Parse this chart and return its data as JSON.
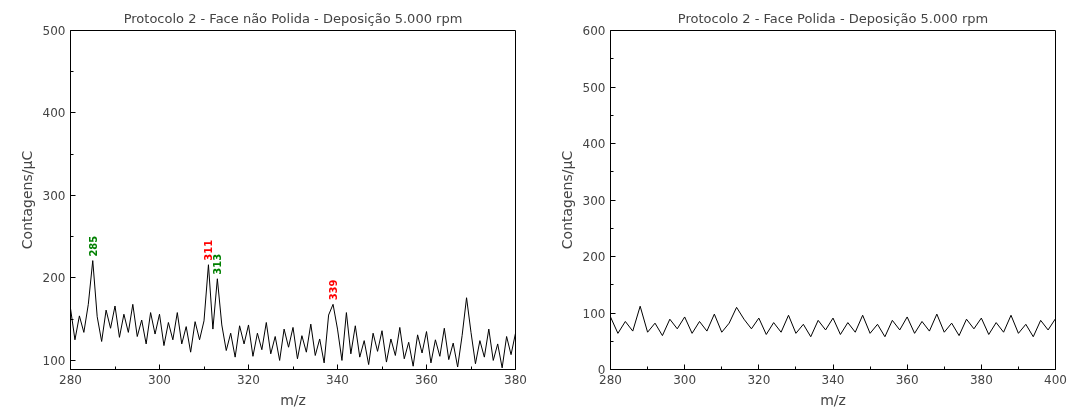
{
  "chart_data": [
    {
      "type": "line",
      "title": "Protocolo 2 - Face não Polida - Deposição 5.000 rpm",
      "xlabel": "m/z",
      "ylabel": "Contagens/μC",
      "xlim": [
        280,
        380
      ],
      "xticks": [
        280,
        300,
        320,
        340,
        360,
        380
      ],
      "ylim": [
        89,
        500
      ],
      "yticks": [
        100,
        200,
        300,
        400,
        500
      ],
      "grid": false,
      "series": [
        {
          "color": "#000000",
          "x": [
            280,
            281,
            282,
            283,
            284,
            285,
            286,
            287,
            288,
            289,
            290,
            291,
            292,
            293,
            294,
            295,
            296,
            297,
            298,
            299,
            300,
            301,
            302,
            303,
            304,
            305,
            306,
            307,
            308,
            309,
            310,
            311,
            312,
            313,
            314,
            315,
            316,
            317,
            318,
            319,
            320,
            321,
            322,
            323,
            324,
            325,
            326,
            327,
            328,
            329,
            330,
            331,
            332,
            333,
            334,
            335,
            336,
            337,
            338,
            339,
            340,
            341,
            342,
            343,
            344,
            345,
            346,
            347,
            348,
            349,
            350,
            351,
            352,
            353,
            354,
            355,
            356,
            357,
            358,
            359,
            360,
            361,
            362,
            363,
            364,
            365,
            366,
            367,
            368,
            369,
            370,
            371,
            372,
            373,
            374,
            375,
            376,
            377,
            378,
            379,
            380
          ],
          "values": [
            163,
            125,
            154,
            134,
            168,
            221,
            153,
            123,
            161,
            139,
            166,
            128,
            156,
            134,
            168,
            129,
            149,
            120,
            158,
            132,
            156,
            118,
            146,
            125,
            158,
            120,
            141,
            110,
            147,
            125,
            148,
            216,
            138,
            199,
            143,
            112,
            133,
            104,
            142,
            120,
            143,
            105,
            133,
            113,
            146,
            108,
            129,
            100,
            138,
            116,
            140,
            102,
            130,
            110,
            144,
            106,
            126,
            97,
            155,
            168,
            138,
            100,
            158,
            108,
            142,
            104,
            124,
            95,
            133,
            111,
            136,
            98,
            126,
            106,
            140,
            102,
            122,
            93,
            131,
            109,
            135,
            97,
            125,
            105,
            139,
            101,
            121,
            92,
            130,
            176,
            134,
            96,
            124,
            104,
            138,
            100,
            120,
            91,
            129,
            107,
            133
          ]
        }
      ],
      "annotations": [
        {
          "text": "285",
          "x": 285,
          "y": 221
        },
        {
          "text": "311",
          "x": 311,
          "y": 216
        },
        {
          "text": "313",
          "x": 313,
          "y": 199
        },
        {
          "text": "339",
          "x": 339,
          "y": 168
        }
      ]
    },
    {
      "type": "line",
      "title": "Protocolo 2 - Face Polida - Deposição 5.000 rpm",
      "xlabel": "m/z",
      "ylabel": "Contagens/μC",
      "xlim": [
        280,
        400
      ],
      "xticks": [
        280,
        300,
        320,
        340,
        360,
        380,
        400
      ],
      "ylim": [
        0,
        600
      ],
      "yticks": [
        0,
        100,
        200,
        300,
        400,
        500,
        600
      ],
      "grid": false,
      "series": [
        {
          "color": "#000000",
          "x": [
            280,
            282,
            284,
            286,
            288,
            290,
            292,
            294,
            296,
            298,
            300,
            302,
            304,
            306,
            308,
            310,
            312,
            314,
            316,
            318,
            320,
            322,
            324,
            326,
            328,
            330,
            332,
            334,
            336,
            338,
            340,
            342,
            344,
            346,
            348,
            350,
            352,
            354,
            356,
            358,
            360,
            362,
            364,
            366,
            368,
            370,
            372,
            374,
            376,
            378,
            380,
            382,
            384,
            386,
            388,
            390,
            392,
            394,
            396,
            398,
            400
          ],
          "values": [
            93,
            64,
            85,
            68,
            112,
            66,
            82,
            60,
            89,
            72,
            93,
            64,
            85,
            68,
            98,
            66,
            82,
            110,
            89,
            72,
            91,
            62,
            83,
            66,
            96,
            64,
            80,
            58,
            87,
            70,
            91,
            62,
            83,
            66,
            96,
            64,
            80,
            58,
            87,
            70,
            93,
            64,
            85,
            68,
            98,
            66,
            82,
            60,
            89,
            72,
            91,
            62,
            83,
            66,
            96,
            64,
            80,
            58,
            87,
            70,
            90
          ]
        }
      ]
    }
  ]
}
